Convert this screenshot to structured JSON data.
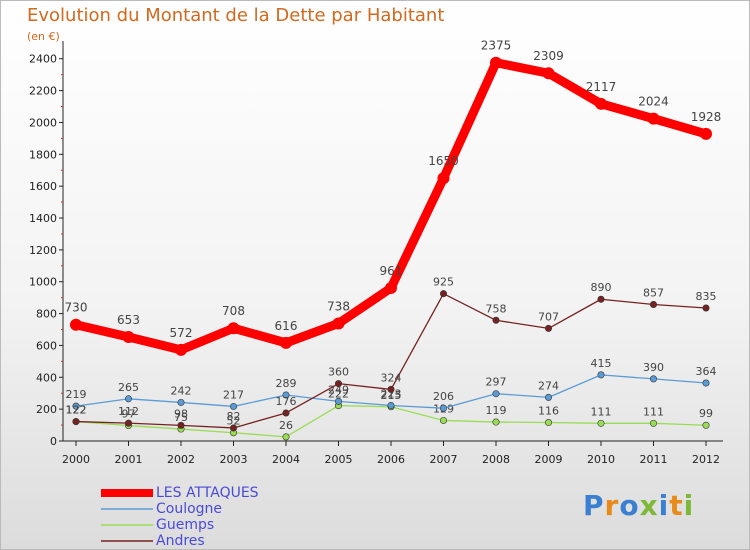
{
  "title": "Evolution du Montant de la Dette par Habitant",
  "subtitle": "(en €)",
  "brand": "Proxiti",
  "chart_data": {
    "type": "line",
    "x": [
      "2000",
      "2001",
      "2002",
      "2003",
      "2004",
      "2005",
      "2006",
      "2007",
      "2008",
      "2009",
      "2010",
      "2011",
      "2012"
    ],
    "y_ticks": [
      0,
      200,
      400,
      600,
      800,
      1000,
      1200,
      1400,
      1600,
      1800,
      2000,
      2200,
      2400
    ],
    "ylim": [
      0,
      2480
    ],
    "grid": false,
    "legend_position": "bottom-left",
    "series": [
      {
        "name": "LES ATTAQUES",
        "color": "#ff0000",
        "values": [
          730,
          653,
          572,
          708,
          616,
          738,
          961,
          1650,
          2375,
          2309,
          2117,
          2024,
          1928
        ],
        "labels": [
          "730",
          "653",
          "572",
          "708",
          "616",
          "738",
          "961",
          "1650",
          "2375",
          "2309",
          "2117",
          "2024",
          "1928"
        ]
      },
      {
        "name": "Coulogne",
        "color": "#5b9bd5",
        "values": [
          219,
          265,
          242,
          217,
          289,
          249,
          223,
          206,
          297,
          274,
          415,
          390,
          364
        ],
        "labels": [
          "219",
          "265",
          "242",
          "217",
          "289",
          "249",
          "223",
          "206",
          "297",
          "274",
          "415",
          "390",
          "364"
        ]
      },
      {
        "name": "Guemps",
        "color": "#99dd55",
        "values": [
          122,
          97,
          75,
          52,
          26,
          222,
          215,
          129,
          119,
          116,
          111,
          111,
          99
        ],
        "labels": [
          "122",
          "97",
          "75",
          "52",
          "26",
          "222",
          "215",
          "129",
          "119",
          "116",
          "111",
          "111",
          "99"
        ]
      },
      {
        "name": "Andres",
        "color": "#772222",
        "values": [
          122,
          112,
          98,
          82,
          176,
          360,
          324,
          925,
          758,
          707,
          890,
          857,
          835
        ],
        "labels": [
          "122",
          "112",
          "98",
          "82",
          "176",
          "360",
          "324",
          "925",
          "758",
          "707",
          "890",
          "857",
          "835"
        ]
      }
    ]
  }
}
